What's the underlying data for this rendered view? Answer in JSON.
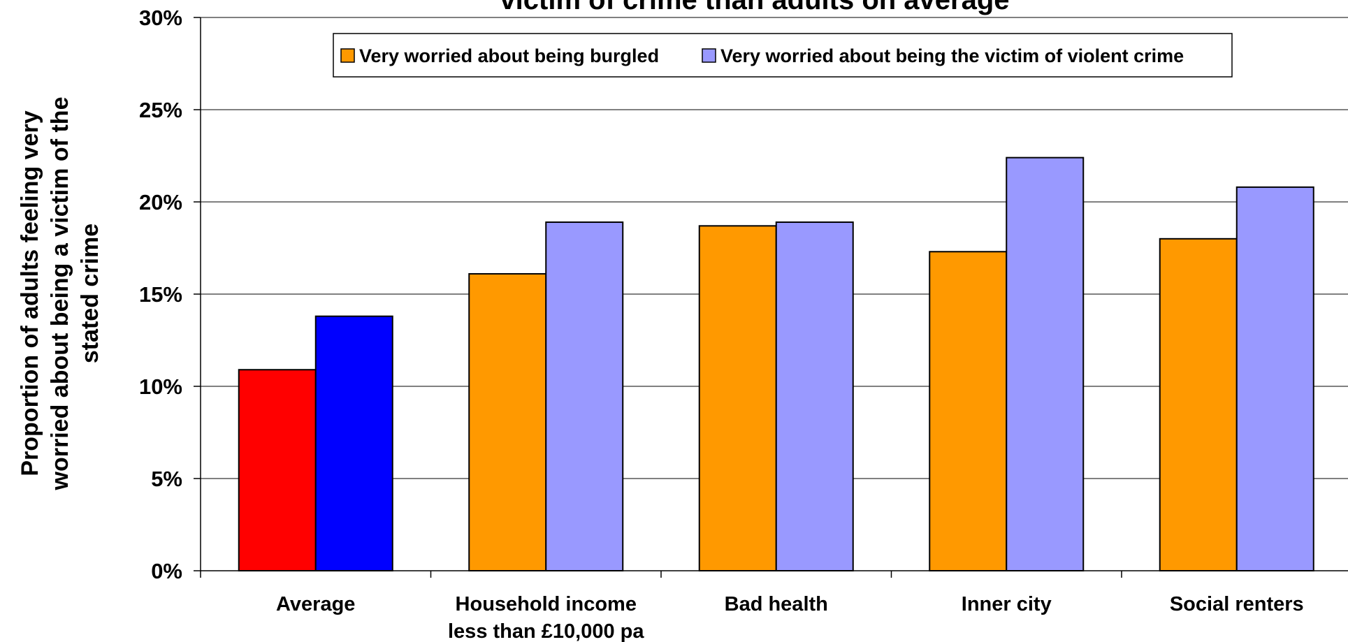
{
  "chart_data": {
    "type": "bar",
    "title": "victim of crime than adults on average",
    "ylabel_lines": [
      "Proportion of adults feeling very",
      "worried about being a victim of the",
      "stated crime"
    ],
    "xlabel": "",
    "ylim": [
      0,
      30
    ],
    "yticks": [
      "0%",
      "5%",
      "10%",
      "15%",
      "20%",
      "25%",
      "30%"
    ],
    "ytick_values": [
      0,
      5,
      10,
      15,
      20,
      25,
      30
    ],
    "grid": true,
    "legend_position": "top",
    "categories": [
      [
        "Average"
      ],
      [
        "Household income",
        "less than £10,000 pa"
      ],
      [
        "Bad health"
      ],
      [
        "Inner city"
      ],
      [
        "Social renters"
      ]
    ],
    "series": [
      {
        "name": "Very worried about being burgled",
        "color": "#FF9900",
        "values": [
          10.9,
          16.1,
          18.7,
          17.3,
          18.0
        ],
        "point_colors": [
          "#FF0000",
          "#FF9900",
          "#FF9900",
          "#FF9900",
          "#FF9900"
        ]
      },
      {
        "name": "Very worried about being the victim of violent crime",
        "color": "#9999FF",
        "values": [
          13.8,
          18.9,
          18.9,
          22.4,
          20.8
        ],
        "point_colors": [
          "#0000FF",
          "#9999FF",
          "#9999FF",
          "#9999FF",
          "#9999FF"
        ]
      }
    ]
  }
}
